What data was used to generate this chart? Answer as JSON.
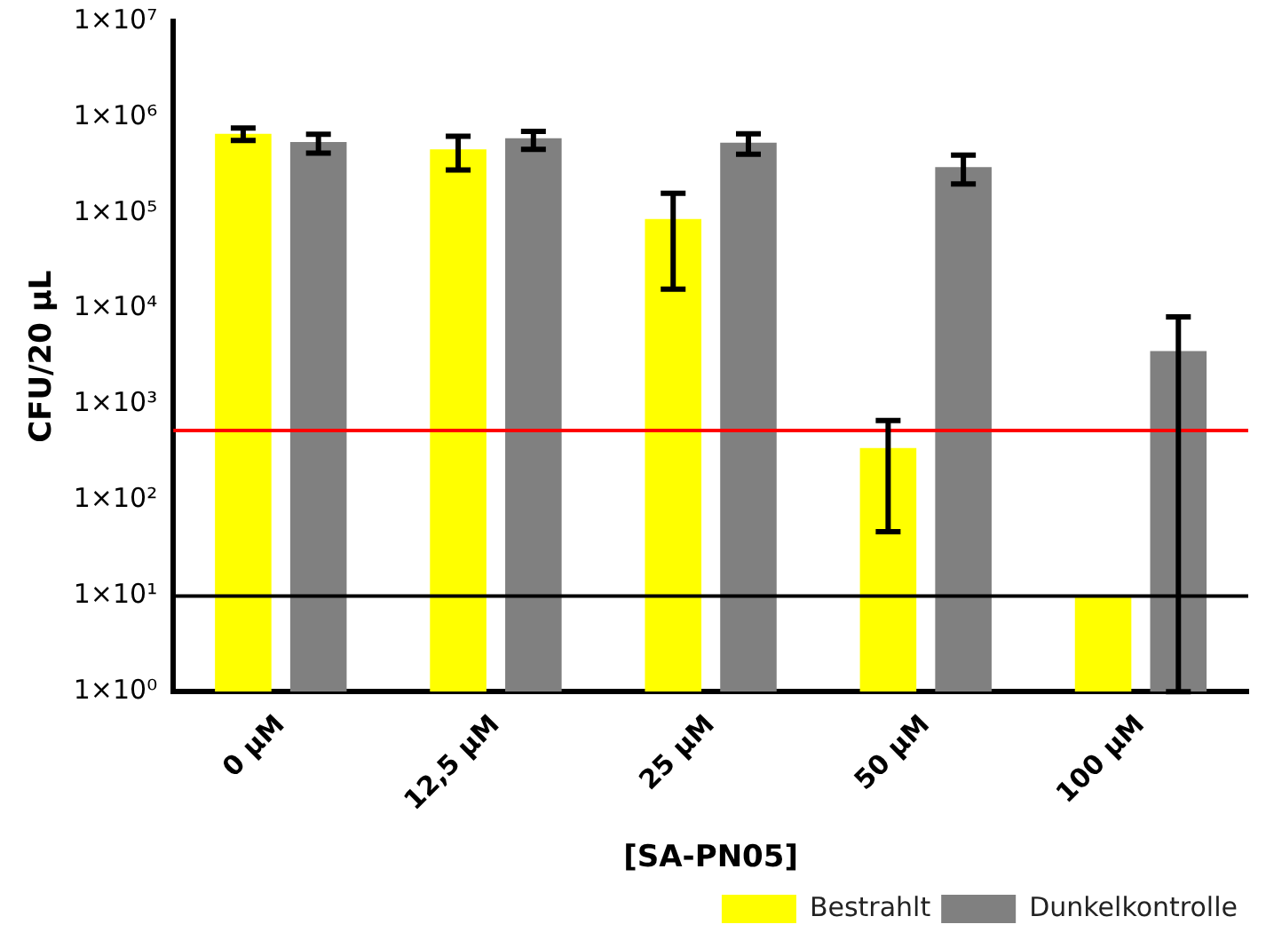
{
  "chart_data": {
    "type": "bar",
    "xlabel": "[SA-PN05]",
    "ylabel": "CFU/20 µL",
    "categories": [
      "0 µM",
      "12,5 µM",
      "25 µM",
      "50 µM",
      "100 µM"
    ],
    "series": [
      {
        "name": "Bestrahlt",
        "color": "#ffff00",
        "values": [
          670000,
          460000,
          86000,
          350,
          10
        ],
        "errors": [
          [
            570000,
            770000
          ],
          [
            280000,
            630000
          ],
          [
            16000,
            160000
          ],
          [
            47,
            680
          ],
          null
        ]
      },
      {
        "name": "Dunkelkontrolle",
        "color": "#808080",
        "values": [
          550000,
          600000,
          540000,
          300000,
          3600
        ],
        "errors": [
          [
            420000,
            660000
          ],
          [
            460000,
            710000
          ],
          [
            410000,
            670000
          ],
          [
            200000,
            400000
          ],
          [
            1,
            8200
          ]
        ]
      }
    ],
    "log": "y",
    "ylim": [
      1,
      10000000
    ],
    "yticks": [
      {
        "value": 1,
        "label": "1×10⁰"
      },
      {
        "value": 10,
        "label": "1×10¹"
      },
      {
        "value": 100,
        "label": "1×10²"
      },
      {
        "value": 1000,
        "label": "1×10³"
      },
      {
        "value": 10000,
        "label": "1×10⁴"
      },
      {
        "value": 100000,
        "label": "1×10⁵"
      },
      {
        "value": 1000000,
        "label": "1×10⁶"
      },
      {
        "value": 10000000,
        "label": "1×10⁷"
      }
    ],
    "ref_lines": [
      {
        "axis": "y",
        "value": 535,
        "color": "#ff0000"
      },
      {
        "axis": "y",
        "value": 10,
        "color": "#000000"
      }
    ],
    "grid": false,
    "legend": "bottom right"
  }
}
